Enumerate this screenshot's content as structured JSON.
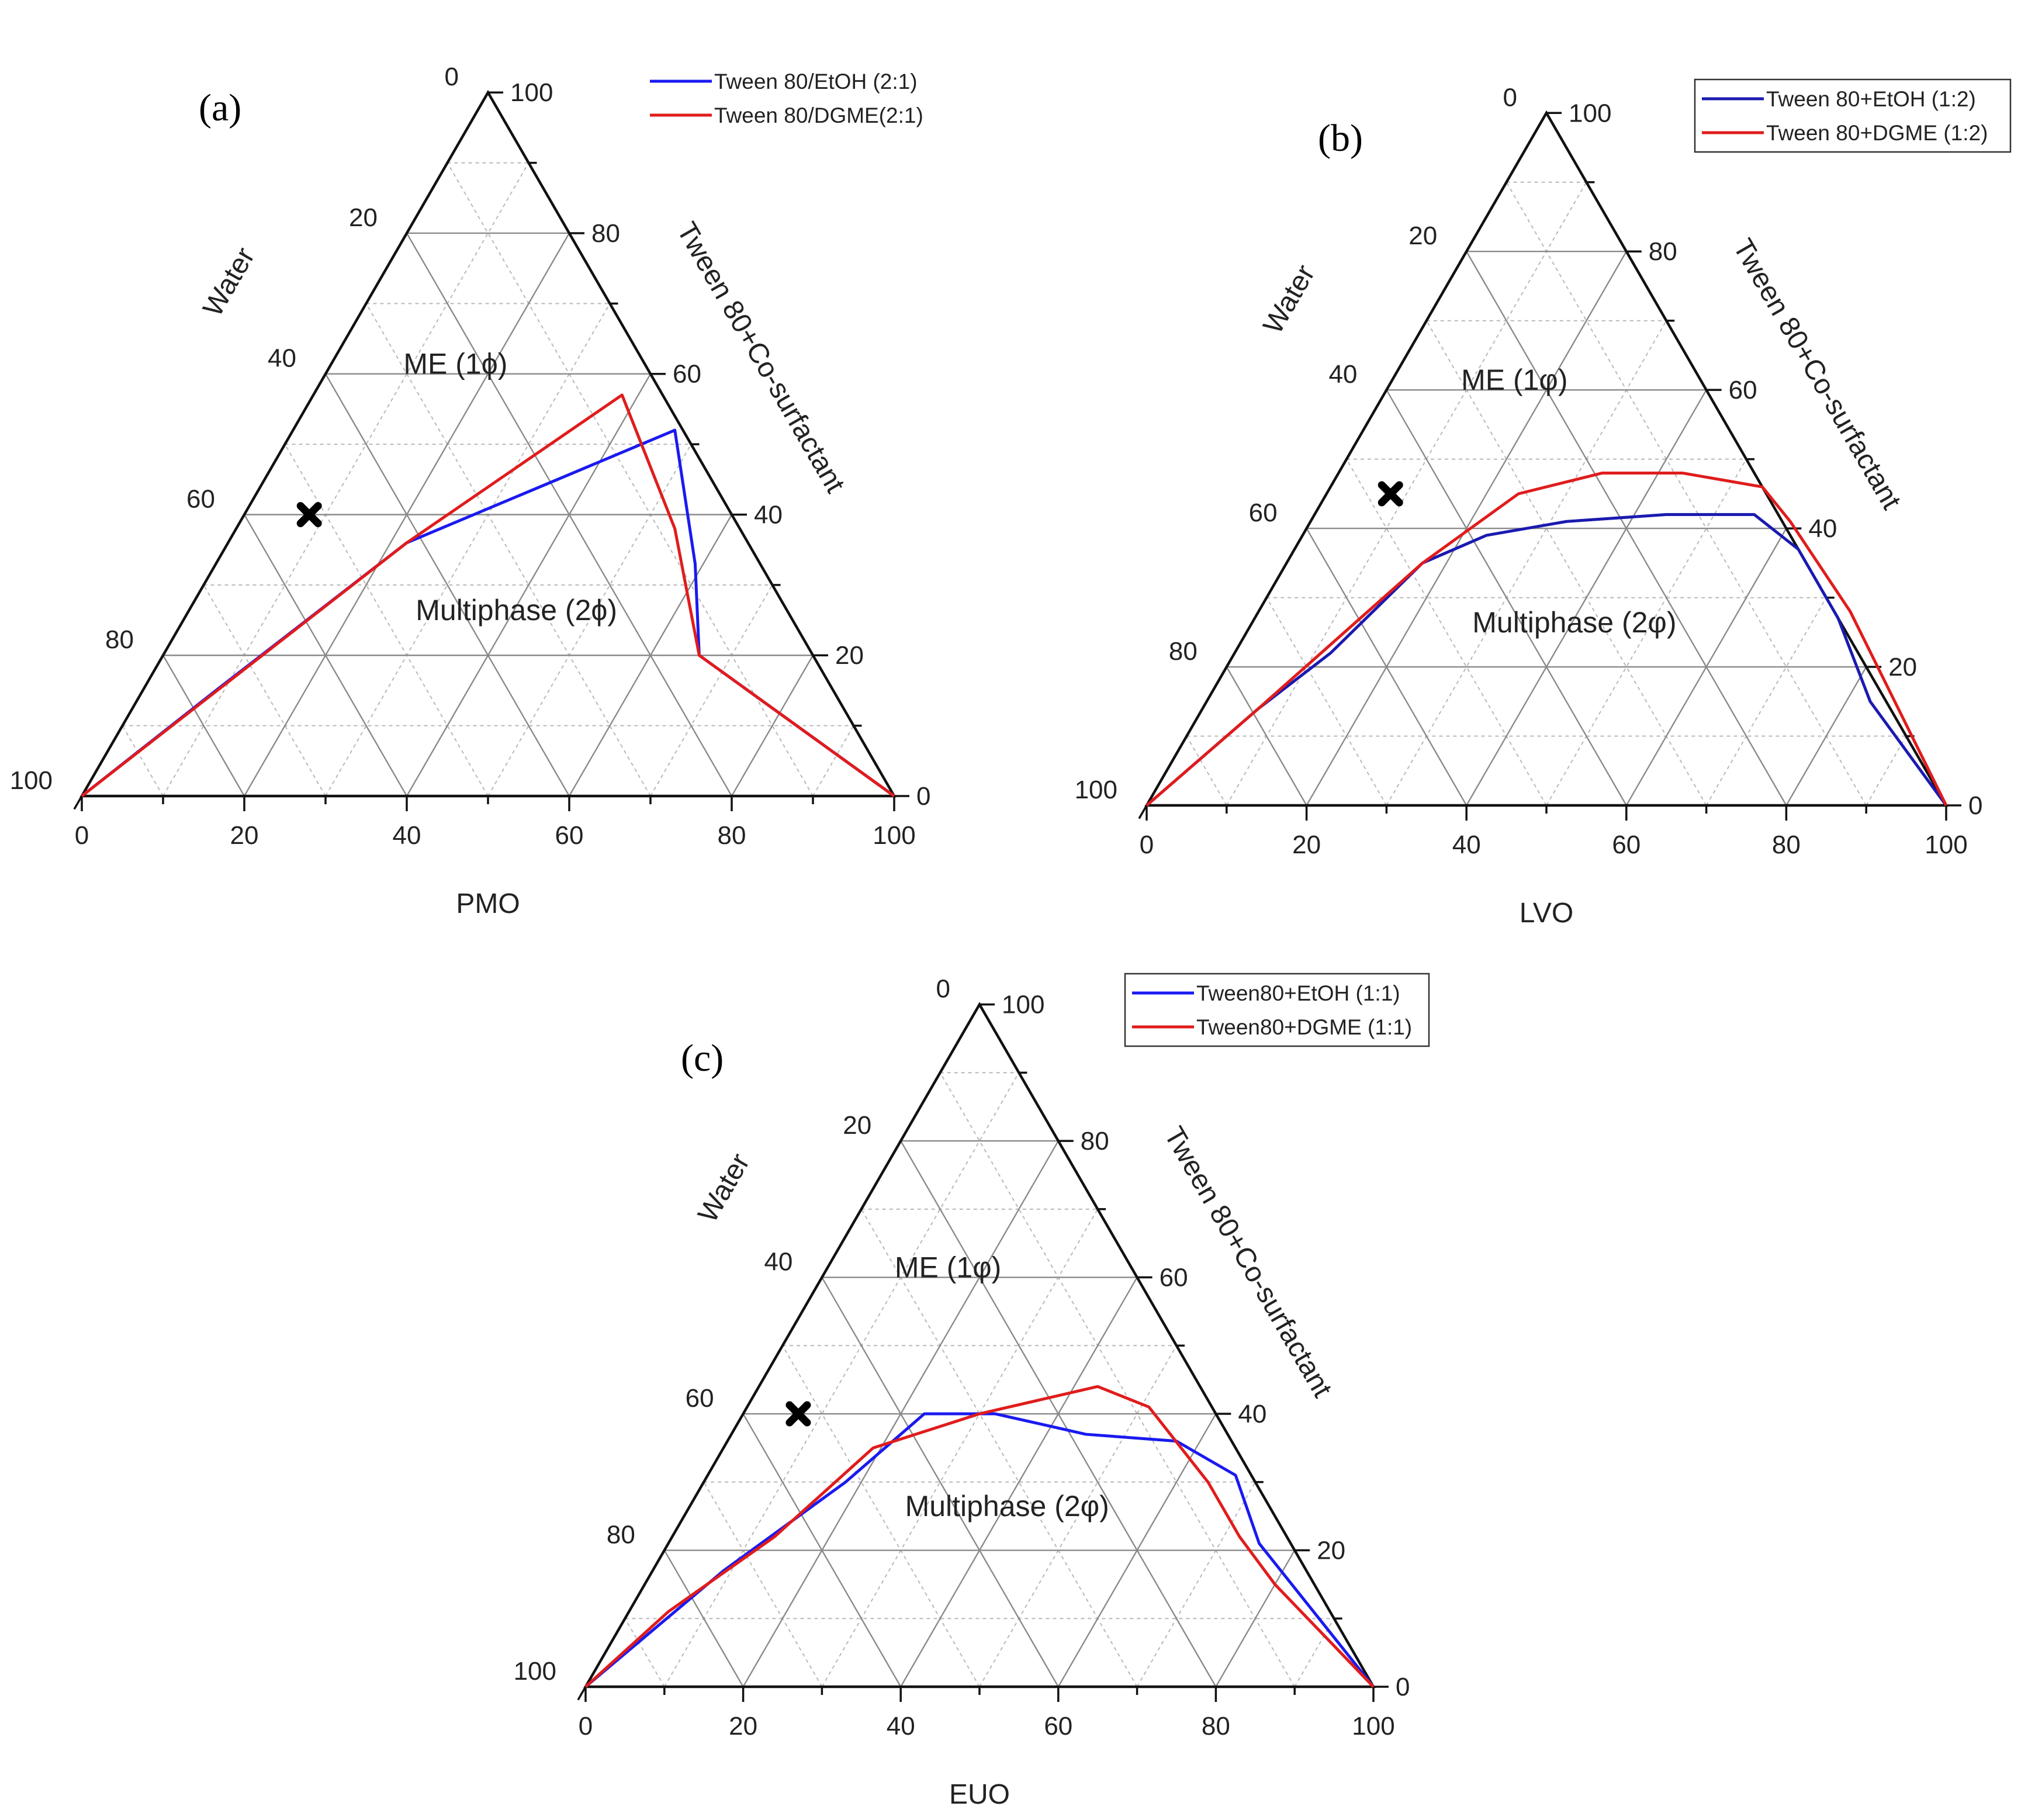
{
  "figure": {
    "panels": [
      {
        "id": "a",
        "label": "(a)",
        "bottom_axis_label": "PMO",
        "left_axis_label": "Water",
        "right_axis_label": "Tween 80+Co-surfactant",
        "tick_labels": [
          "0",
          "20",
          "40",
          "60",
          "80",
          "100"
        ],
        "region_labels": {
          "me": "ME (1ϕ)",
          "multiphase": "Multiphase (2ϕ)"
        },
        "legend_boxed": false,
        "legend": [
          {
            "name": "Tween 80/EtOH  (2:1)",
            "color": "#1a1af0"
          },
          {
            "name": "Tween 80/DGME(2:1)",
            "color": "#e01c1c"
          }
        ]
      },
      {
        "id": "b",
        "label": "(b)",
        "bottom_axis_label": "LVO",
        "left_axis_label": "Water",
        "right_axis_label": "Tween 80+Co-surfactant",
        "tick_labels": [
          "0",
          "20",
          "40",
          "60",
          "80",
          "100"
        ],
        "region_labels": {
          "me": "ME (1φ)",
          "multiphase": "Multiphase (2φ)"
        },
        "legend_boxed": true,
        "legend": [
          {
            "name": "Tween 80+EtOH    (1:2)",
            "color": "#1a1ab0"
          },
          {
            "name": "Tween 80+DGME (1:2)",
            "color": "#e01c1c"
          }
        ]
      },
      {
        "id": "c",
        "label": "(c)",
        "bottom_axis_label": "EUO",
        "left_axis_label": "Water",
        "right_axis_label": "Tween 80+Co-surfactant",
        "tick_labels": [
          "0",
          "20",
          "40",
          "60",
          "80",
          "100"
        ],
        "region_labels": {
          "me": "ME (1φ)",
          "multiphase": "Multiphase (2φ)"
        },
        "legend_boxed": true,
        "legend": [
          {
            "name": "Tween80+EtOH     (1:1)",
            "color": "#1a1af0"
          },
          {
            "name": "Tween80+DGME (1:1)",
            "color": "#e01c1c"
          }
        ]
      }
    ]
  },
  "chart_data": [
    {
      "type": "ternary-line",
      "panel": "a",
      "axes": {
        "bottom": "PMO",
        "left": "Water",
        "right": "Tween 80+Co-surfactant"
      },
      "range": [
        0,
        100
      ],
      "point_format": "[oil, surfactant_mix] in %; water = 100 - oil - surfactant_mix",
      "series": [
        {
          "name": "Tween 80/EtOH  (2:1)",
          "points": [
            [
              0,
              0
            ],
            [
              9,
              15
            ],
            [
              22,
              36
            ],
            [
              47,
              52
            ],
            [
              59,
              33
            ],
            [
              66,
              20
            ],
            [
              100,
              0
            ]
          ]
        },
        {
          "name": "Tween 80/DGME(2:1)",
          "points": [
            [
              0,
              0
            ],
            [
              22,
              36
            ],
            [
              38,
              57
            ],
            [
              54,
              38
            ],
            [
              66,
              20
            ],
            [
              100,
              0
            ]
          ]
        }
      ],
      "marker": {
        "symbol": "✖",
        "point": [
          8,
          40
        ]
      }
    },
    {
      "type": "ternary-line",
      "panel": "b",
      "axes": {
        "bottom": "LVO",
        "left": "Water",
        "right": "Tween 80+Co-surfactant"
      },
      "range": [
        0,
        100
      ],
      "point_format": "[oil, surfactant_mix] in %; water = 100 - oil - surfactant_mix",
      "series": [
        {
          "name": "Tween 80+EtOH    (1:2)",
          "points": [
            [
              0,
              0
            ],
            [
              7,
              14
            ],
            [
              12,
              22
            ],
            [
              17,
              35
            ],
            [
              23,
              39
            ],
            [
              32,
              41
            ],
            [
              44,
              42
            ],
            [
              55,
              42
            ],
            [
              63,
              37
            ],
            [
              73,
              27
            ],
            [
              83,
              15
            ],
            [
              100,
              0
            ]
          ]
        },
        {
          "name": "Tween 80+DGME (1:2)",
          "points": [
            [
              0,
              0
            ],
            [
              7,
              14
            ],
            [
              17,
              35
            ],
            [
              24,
              45
            ],
            [
              33,
              48
            ],
            [
              43,
              48
            ],
            [
              54,
              46
            ],
            [
              60,
              41
            ],
            [
              74,
              28
            ],
            [
              100,
              0
            ]
          ]
        }
      ],
      "marker": {
        "symbol": "✖",
        "point": [
          8,
          45
        ]
      }
    },
    {
      "type": "ternary-line",
      "panel": "c",
      "axes": {
        "bottom": "EUO",
        "left": "Water",
        "right": "Tween 80+Co-surfactant"
      },
      "range": [
        0,
        100
      ],
      "point_format": "[oil, surfactant_mix] in %; water = 100 - oil - surfactant_mix",
      "series": [
        {
          "name": "Tween80+EtOH     (1:1)",
          "points": [
            [
              0,
              0
            ],
            [
              9,
              17
            ],
            [
              18,
              30
            ],
            [
              23,
              40
            ],
            [
              32,
              40
            ],
            [
              45,
              37
            ],
            [
              57,
              36
            ],
            [
              67,
              31
            ],
            [
              75,
              21
            ],
            [
              100,
              0
            ]
          ]
        },
        {
          "name": "Tween80+DGME (1:1)",
          "points": [
            [
              0,
              0
            ],
            [
              5,
              11
            ],
            [
              13,
              22
            ],
            [
              19,
              35
            ],
            [
              30,
              40
            ],
            [
              43,
              44
            ],
            [
              51,
              41
            ],
            [
              64,
              30
            ],
            [
              72,
              22
            ],
            [
              80,
              15
            ],
            [
              100,
              0
            ]
          ]
        }
      ],
      "marker": {
        "symbol": "✖",
        "point": [
          7,
          40
        ]
      }
    }
  ]
}
